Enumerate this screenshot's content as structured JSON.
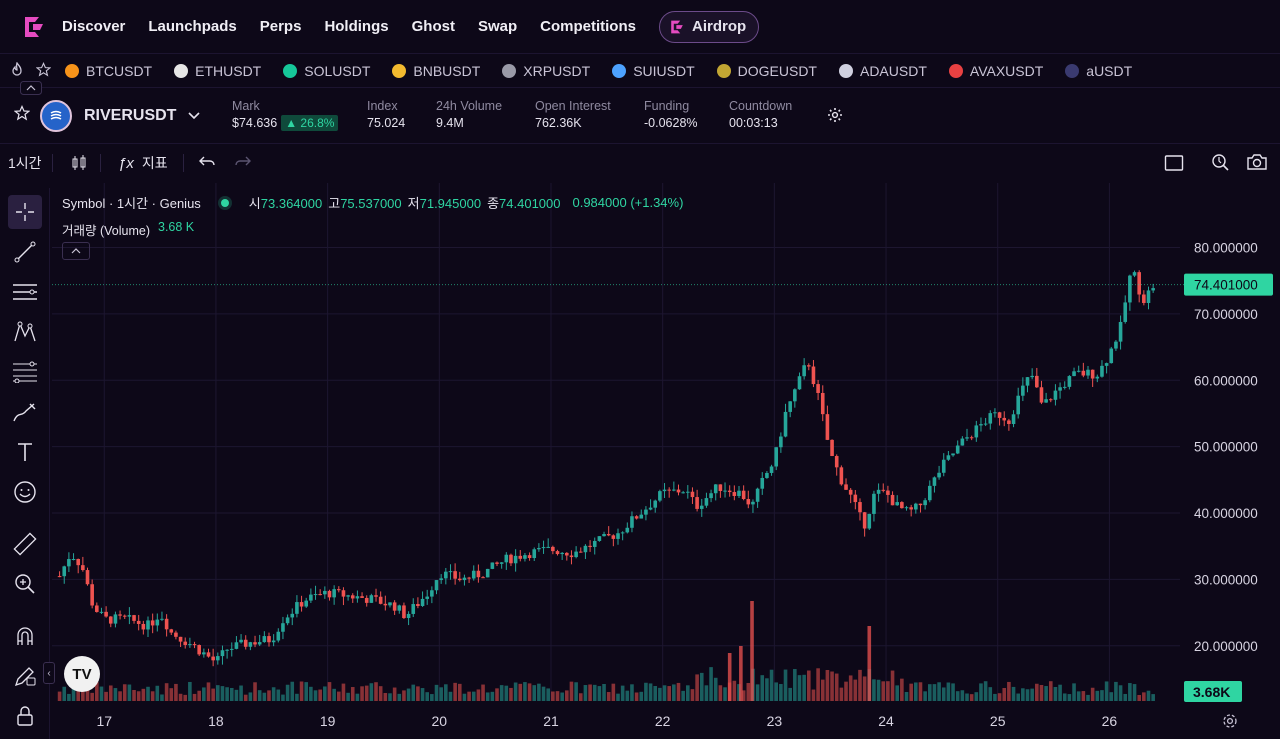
{
  "nav": {
    "items": [
      "Discover",
      "Launchpads",
      "Perps",
      "Holdings",
      "Ghost",
      "Swap",
      "Competitions"
    ],
    "airdrop_label": "Airdrop"
  },
  "tickers": [
    {
      "symbol": "BTCUSDT",
      "color": "#f7931a"
    },
    {
      "symbol": "ETHUSDT",
      "color": "#e6e6e6"
    },
    {
      "symbol": "SOLUSDT",
      "color": "#16c79a"
    },
    {
      "symbol": "BNBUSDT",
      "color": "#f3ba2f"
    },
    {
      "symbol": "XRPUSDT",
      "color": "#9a9aa8"
    },
    {
      "symbol": "SUIUSDT",
      "color": "#4da2ff"
    },
    {
      "symbol": "DOGEUSDT",
      "color": "#c2a633"
    },
    {
      "symbol": "ADAUSDT",
      "color": "#d0d0e0"
    },
    {
      "symbol": "AVAXUSDT",
      "color": "#e84142"
    },
    {
      "symbol": "aUSDT",
      "color": "#3a3a70"
    }
  ],
  "info": {
    "symbol": "RIVERUSDT",
    "mark_label": "Mark",
    "mark_value": "$74.636",
    "mark_change": "26.8%",
    "index_label": "Index",
    "index_value": "75.024",
    "volume_label": "24h Volume",
    "volume_value": "9.4M",
    "oi_label": "Open Interest",
    "oi_value": "762.36K",
    "funding_label": "Funding",
    "funding_value": "-0.0628%",
    "countdown_label": "Countdown",
    "countdown_value": "00:03:13"
  },
  "toolbar": {
    "interval": "1시간",
    "indicators": "지표"
  },
  "legend": {
    "title": "Symbol · 1시간 · Genius",
    "o_label": "시",
    "o": "73.364000",
    "h_label": "고",
    "h": "75.537000",
    "l_label": "저",
    "l": "71.945000",
    "c_label": "종",
    "c": "74.401000",
    "change": "0.984000 (+1.34%)",
    "volume_label": "거래량 (Volume)",
    "volume_value": "3.68 K"
  },
  "colors": {
    "up": "#26a69a",
    "down": "#ef5350",
    "accent": "#2fd5a2",
    "bg": "#0d0818"
  },
  "chart_data": {
    "type": "candlestick",
    "x_ticks": [
      "17",
      "18",
      "19",
      "20",
      "21",
      "22",
      "23",
      "24",
      "25",
      "26"
    ],
    "y_ticks": [
      "80.000000",
      "70.000000",
      "60.000000",
      "50.000000",
      "40.000000",
      "30.000000",
      "20.000000"
    ],
    "ylim": [
      15,
      87
    ],
    "last_price": "74.401000",
    "last_volume": "3.68K",
    "close_path": [
      [
        16.6,
        30.5
      ],
      [
        16.7,
        34
      ],
      [
        16.8,
        32
      ],
      [
        16.9,
        26
      ],
      [
        17.0,
        24
      ],
      [
        17.2,
        24
      ],
      [
        17.4,
        23
      ],
      [
        17.5,
        25
      ],
      [
        17.6,
        22
      ],
      [
        17.8,
        20
      ],
      [
        18.0,
        17.5
      ],
      [
        18.1,
        19.5
      ],
      [
        18.3,
        20.5
      ],
      [
        18.5,
        21
      ],
      [
        18.6,
        24
      ],
      [
        18.8,
        27
      ],
      [
        19.0,
        28
      ],
      [
        19.2,
        27.5
      ],
      [
        19.4,
        27
      ],
      [
        19.6,
        26
      ],
      [
        19.7,
        24.5
      ],
      [
        19.9,
        28
      ],
      [
        20.0,
        31
      ],
      [
        20.2,
        30
      ],
      [
        20.4,
        31
      ],
      [
        20.6,
        33
      ],
      [
        20.8,
        34
      ],
      [
        21.0,
        34.5
      ],
      [
        21.2,
        34
      ],
      [
        21.4,
        35.5
      ],
      [
        21.6,
        37
      ],
      [
        21.8,
        40
      ],
      [
        22.0,
        43
      ],
      [
        22.2,
        43.5
      ],
      [
        22.3,
        41
      ],
      [
        22.5,
        44
      ],
      [
        22.7,
        43
      ],
      [
        22.8,
        41
      ],
      [
        22.9,
        45
      ],
      [
        23.0,
        48
      ],
      [
        23.1,
        55
      ],
      [
        23.3,
        63
      ],
      [
        23.4,
        57
      ],
      [
        23.5,
        49
      ],
      [
        23.6,
        45
      ],
      [
        23.7,
        42
      ],
      [
        23.8,
        38
      ],
      [
        23.9,
        43
      ],
      [
        24.0,
        43
      ],
      [
        24.1,
        41
      ],
      [
        24.2,
        40
      ],
      [
        24.3,
        41
      ],
      [
        24.5,
        47
      ],
      [
        24.7,
        51
      ],
      [
        24.9,
        54
      ],
      [
        25.0,
        55
      ],
      [
        25.1,
        54
      ],
      [
        25.2,
        58
      ],
      [
        25.3,
        61
      ],
      [
        25.4,
        56
      ],
      [
        25.5,
        58
      ],
      [
        25.7,
        61
      ],
      [
        25.9,
        61
      ],
      [
        26.0,
        64
      ],
      [
        26.1,
        68
      ],
      [
        26.2,
        77
      ],
      [
        26.3,
        72
      ],
      [
        26.4,
        74.4
      ]
    ],
    "volume_spikes": [
      {
        "x": 22.8,
        "value": 100
      },
      {
        "x": 23.85,
        "value": 75
      },
      {
        "x": 22.7,
        "value": 55
      },
      {
        "x": 22.6,
        "value": 48
      }
    ]
  }
}
